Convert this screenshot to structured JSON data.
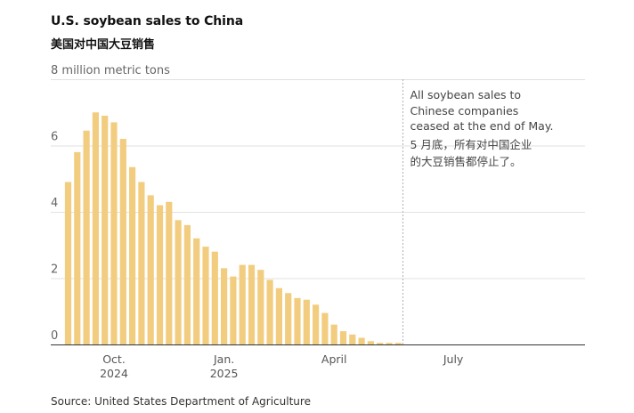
{
  "title": "U.S. soybean sales to China",
  "subtitle": "美国对中国大豆销售",
  "source": "Source: United States Department of Agriculture",
  "annotation": {
    "lines": [
      "All soybean sales to",
      "Chinese companies",
      "ceased at the end of May.",
      "5 月底，所有对中国企业",
      "的大豆销售都停止了。"
    ]
  },
  "chart_data": {
    "type": "bar",
    "ylabel": "million metric tons",
    "ylim": [
      0,
      8
    ],
    "y_ticks": [
      {
        "value": 0,
        "label": "0"
      },
      {
        "value": 2,
        "label": "2"
      },
      {
        "value": 4,
        "label": "4"
      },
      {
        "value": 6,
        "label": "6"
      },
      {
        "value": 8,
        "label": "8 million metric tons"
      }
    ],
    "x_ticks": [
      {
        "index": 5,
        "label": "Oct.",
        "sublabel": "2024"
      },
      {
        "index": 17,
        "label": "Jan.",
        "sublabel": "2025"
      },
      {
        "index": 29,
        "label": "April",
        "sublabel": ""
      },
      {
        "index": 42,
        "label": "July",
        "sublabel": ""
      }
    ],
    "annotation_at_index": 36,
    "values": [
      4.9,
      5.8,
      6.45,
      7.0,
      6.9,
      6.7,
      6.2,
      5.35,
      4.9,
      4.5,
      4.2,
      4.3,
      3.75,
      3.6,
      3.2,
      2.95,
      2.8,
      2.3,
      2.05,
      2.4,
      2.4,
      2.25,
      1.95,
      1.7,
      1.55,
      1.4,
      1.35,
      1.2,
      0.95,
      0.6,
      0.4,
      0.3,
      0.2,
      0.1,
      0.05,
      0.05,
      0.05
    ],
    "total_slots": 52,
    "bar_color": "#f2cd80",
    "grid": true
  }
}
